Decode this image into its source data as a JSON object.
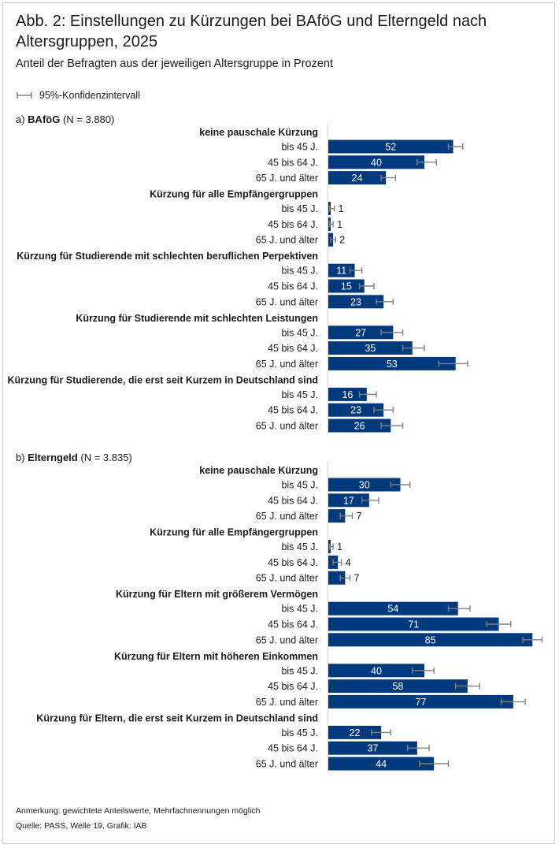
{
  "title": "Abb. 2: Einstellungen zu Kürzungen bei BAföG und Elterngeld nach Altersgruppen, 2025",
  "subtitle": "Anteil der Befragten aus der jeweiligen Altersgruppe in Prozent",
  "legend_label": "95%-Konfidenzintervall",
  "note": "Anmerkung: gewichtete Anteilswerte, Mehrfachnennungen möglich",
  "source": "Quelle: PASS, Welle 19, Grafik: IAB",
  "colors": {
    "bar": "#003a7d",
    "error_bar": "#808080",
    "axis": "#d0d0d0",
    "label_on_bar": "#ffffff"
  },
  "chart_data": [
    {
      "type": "bar",
      "orientation": "horizontal",
      "panel": "a)",
      "panel_title": "BAföG",
      "panel_n": "(N = 3.880)",
      "error_bars": "95%-Konfidenzintervall",
      "groups": [
        {
          "label": "keine pauschale Kürzung",
          "bars": [
            {
              "category": "bis 45 J.",
              "value": 52,
              "ci": [
                50,
                56
              ]
            },
            {
              "category": "45 bis 64 J.",
              "value": 40,
              "ci": [
                37,
                45
              ]
            },
            {
              "category": "65 J. und älter",
              "value": 24,
              "ci": [
                22,
                28
              ]
            }
          ]
        },
        {
          "label": "Kürzung für alle Empfängergruppen",
          "bars": [
            {
              "category": "bis 45 J.",
              "value": 1,
              "ci": [
                0.5,
                2.5
              ]
            },
            {
              "category": "45 bis 64 J.",
              "value": 1,
              "ci": [
                0.5,
                2
              ]
            },
            {
              "category": "65 J. und älter",
              "value": 2,
              "ci": [
                1,
                3
              ]
            }
          ]
        },
        {
          "label": "Kürzung für Studierende mit schlechten beruflichen Perpektiven",
          "bars": [
            {
              "category": "bis 45 J.",
              "value": 11,
              "ci": [
                9,
                14
              ]
            },
            {
              "category": "45 bis 64 J.",
              "value": 15,
              "ci": [
                13,
                19
              ]
            },
            {
              "category": "65 J. und älter",
              "value": 23,
              "ci": [
                20,
                27
              ]
            }
          ]
        },
        {
          "label": "Kürzung für Studierende mit schlechten Leistungen",
          "bars": [
            {
              "category": "bis 45 J.",
              "value": 27,
              "ci": [
                22,
                31
              ]
            },
            {
              "category": "45 bis 64 J.",
              "value": 35,
              "ci": [
                31,
                40
              ]
            },
            {
              "category": "65 J. und älter",
              "value": 53,
              "ci": [
                46,
                58
              ]
            }
          ]
        },
        {
          "label": "Kürzung für Studierende, die erst seit Kurzem in Deutschland sind",
          "bars": [
            {
              "category": "bis 45 J.",
              "value": 16,
              "ci": [
                13,
                20
              ]
            },
            {
              "category": "45 bis 64 J.",
              "value": 23,
              "ci": [
                19,
                27
              ]
            },
            {
              "category": "65 J. und älter",
              "value": 26,
              "ci": [
                22,
                31
              ]
            }
          ]
        }
      ]
    },
    {
      "type": "bar",
      "orientation": "horizontal",
      "panel": "b)",
      "panel_title": "Elterngeld",
      "panel_n": "(N = 3.835)",
      "error_bars": "95%-Konfidenzintervall",
      "groups": [
        {
          "label": "keine pauschale Kürzung",
          "bars": [
            {
              "category": "bis 45 J.",
              "value": 30,
              "ci": [
                26,
                34
              ]
            },
            {
              "category": "45 bis 64 J.",
              "value": 17,
              "ci": [
                14,
                21
              ]
            },
            {
              "category": "65 J. und älter",
              "value": 7,
              "ci": [
                5,
                10
              ]
            }
          ]
        },
        {
          "label": "Kürzung für alle Empfängergruppen",
          "bars": [
            {
              "category": "bis 45 J.",
              "value": 1,
              "ci": [
                0.5,
                2
              ]
            },
            {
              "category": "45 bis 64 J.",
              "value": 4,
              "ci": [
                2,
                5.5
              ]
            },
            {
              "category": "65 J. und älter",
              "value": 7,
              "ci": [
                5,
                9
              ]
            }
          ]
        },
        {
          "label": "Kürzung für Eltern mit größerem Vermögen",
          "bars": [
            {
              "category": "bis 45 J.",
              "value": 54,
              "ci": [
                50,
                59
              ]
            },
            {
              "category": "45 bis 64 J.",
              "value": 71,
              "ci": [
                66,
                76
              ]
            },
            {
              "category": "65 J. und älter",
              "value": 85,
              "ci": [
                81,
                89
              ]
            }
          ]
        },
        {
          "label": "Kürzung für Eltern mit höheren Einkommen",
          "bars": [
            {
              "category": "bis 45 J.",
              "value": 40,
              "ci": [
                35,
                44
              ]
            },
            {
              "category": "45 bis 64 J.",
              "value": 58,
              "ci": [
                53,
                63
              ]
            },
            {
              "category": "65 J. und älter",
              "value": 77,
              "ci": [
                72,
                82
              ]
            }
          ]
        },
        {
          "label": "Kürzung für Eltern, die erst seit Kurzem in Deutschland sind",
          "bars": [
            {
              "category": "bis 45 J.",
              "value": 22,
              "ci": [
                18,
                26
              ]
            },
            {
              "category": "45 bis 64 J.",
              "value": 37,
              "ci": [
                33,
                42
              ]
            },
            {
              "category": "65 J. und älter",
              "value": 44,
              "ci": [
                38,
                50
              ]
            }
          ]
        }
      ]
    }
  ]
}
